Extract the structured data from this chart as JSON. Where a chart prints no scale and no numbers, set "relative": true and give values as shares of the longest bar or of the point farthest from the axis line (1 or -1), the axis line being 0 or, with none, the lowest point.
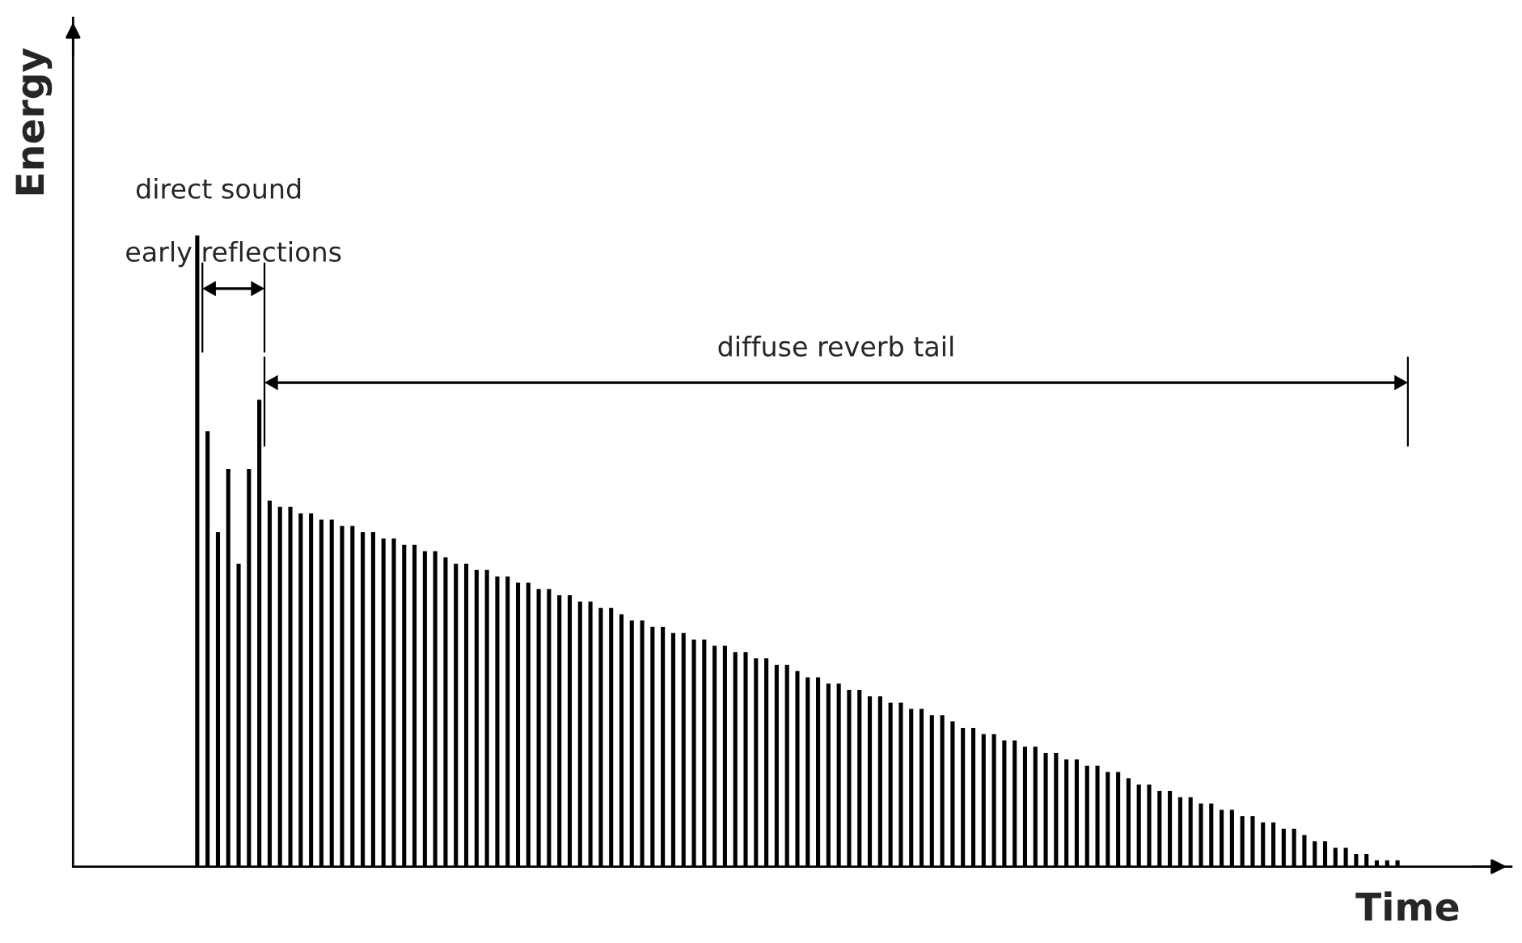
{
  "chart_data": {
    "type": "bar",
    "relative": true,
    "xlabel": "Time",
    "ylabel": "Energy",
    "color": "#000000",
    "grid": false,
    "legend": false,
    "annotations": [
      "direct sound",
      "early reflections",
      "diffuse reverb tail"
    ],
    "categories": [
      null,
      null,
      null,
      null,
      null,
      null,
      null,
      null,
      null,
      null,
      null,
      null,
      null,
      null,
      null,
      null,
      null,
      null,
      null,
      null,
      null,
      null,
      null,
      null,
      null,
      null,
      null,
      null,
      null,
      null,
      null,
      null,
      null,
      null,
      null,
      null,
      null,
      null,
      null,
      null,
      null,
      null,
      null,
      null,
      null,
      null,
      null,
      null,
      null,
      null,
      null,
      null,
      null,
      null,
      null,
      null,
      null,
      null,
      null,
      null,
      null,
      null,
      null,
      null,
      null,
      null,
      null,
      null,
      null,
      null,
      null,
      null,
      null,
      null,
      null,
      null,
      null,
      null,
      null,
      null,
      null,
      null,
      null,
      null,
      null,
      null,
      null,
      null,
      null,
      null,
      null,
      null,
      null,
      null,
      null,
      null,
      null,
      null,
      null,
      null,
      null,
      null,
      null,
      null,
      null,
      null,
      null,
      null,
      null,
      null,
      null,
      null,
      null,
      null,
      null,
      null,
      null
    ],
    "values": [
      1.0,
      0.69,
      0.53,
      0.63,
      0.48,
      0.63,
      0.74,
      0.58,
      0.57,
      0.57,
      0.56,
      0.56,
      0.55,
      0.55,
      0.54,
      0.54,
      0.53,
      0.53,
      0.52,
      0.52,
      0.51,
      0.51,
      0.5,
      0.5,
      0.49,
      0.48,
      0.48,
      0.47,
      0.47,
      0.46,
      0.46,
      0.45,
      0.45,
      0.44,
      0.44,
      0.43,
      0.43,
      0.42,
      0.42,
      0.41,
      0.41,
      0.4,
      0.39,
      0.39,
      0.38,
      0.38,
      0.37,
      0.37,
      0.36,
      0.36,
      0.35,
      0.35,
      0.34,
      0.34,
      0.33,
      0.33,
      0.32,
      0.32,
      0.31,
      0.3,
      0.3,
      0.29,
      0.29,
      0.28,
      0.28,
      0.27,
      0.27,
      0.26,
      0.26,
      0.25,
      0.25,
      0.24,
      0.24,
      0.23,
      0.22,
      0.22,
      0.21,
      0.21,
      0.2,
      0.2,
      0.19,
      0.19,
      0.18,
      0.18,
      0.17,
      0.17,
      0.16,
      0.16,
      0.15,
      0.15,
      0.14,
      0.13,
      0.13,
      0.12,
      0.12,
      0.11,
      0.11,
      0.1,
      0.1,
      0.09,
      0.09,
      0.08,
      0.08,
      0.07,
      0.07,
      0.06,
      0.06,
      0.05,
      0.04,
      0.04,
      0.03,
      0.03,
      0.02,
      0.02,
      0.01,
      0.01,
      0.01
    ]
  }
}
